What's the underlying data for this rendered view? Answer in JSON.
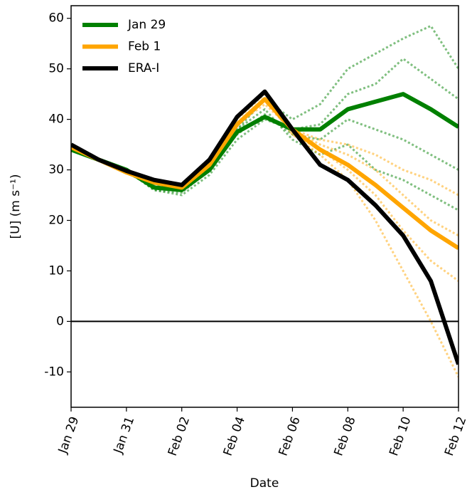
{
  "chart_data": {
    "type": "line",
    "xlabel": "Date",
    "ylabel": "[U] (m s⁻¹)",
    "categories": [
      "Jan 29",
      null,
      "Jan 31",
      null,
      "Feb 02",
      null,
      "Feb 04",
      null,
      "Feb 06",
      null,
      "Feb 08",
      null,
      "Feb 10",
      null,
      "Feb 12"
    ],
    "ylim": [
      -17,
      62.5
    ],
    "yticks": [
      -10,
      0,
      10,
      20,
      30,
      40,
      50,
      60
    ],
    "hline": 0,
    "legend": "upper left",
    "series": [
      {
        "color": "#008000",
        "style": "dotted",
        "values": [
          34,
          32,
          30,
          26,
          25.5,
          30,
          38,
          44,
          40,
          43,
          50,
          53,
          56,
          58.5,
          50
        ]
      },
      {
        "color": "#008000",
        "style": "dotted",
        "values": [
          34,
          32,
          30,
          27,
          26,
          31,
          37,
          41,
          37,
          36,
          40,
          38,
          36,
          33,
          30
        ]
      },
      {
        "color": "#008000",
        "style": "dotted",
        "values": [
          34,
          32,
          30,
          26,
          25,
          29,
          36,
          40,
          38,
          39,
          45,
          47,
          52,
          48,
          44
        ]
      },
      {
        "color": "#008000",
        "style": "dotted",
        "values": [
          34,
          32,
          29.5,
          26.5,
          26,
          30,
          38,
          42,
          36,
          33,
          35,
          30,
          28,
          25,
          22
        ]
      },
      {
        "color": "#ffa500",
        "style": "dotted",
        "values": [
          34.5,
          32,
          29.5,
          27.5,
          27,
          31,
          39,
          44,
          37,
          33,
          28,
          20,
          10,
          0,
          -11
        ]
      },
      {
        "color": "#ffa500",
        "style": "dotted",
        "values": [
          34.5,
          32,
          29.5,
          27.5,
          26.5,
          31,
          39,
          43,
          38,
          36,
          35,
          33,
          30,
          28,
          25
        ]
      },
      {
        "color": "#ffa500",
        "style": "dotted",
        "values": [
          34.5,
          32,
          29.5,
          27.5,
          26.5,
          31,
          39,
          44,
          37,
          34,
          30,
          25,
          18,
          12,
          8
        ]
      },
      {
        "color": "#ffa500",
        "style": "dotted",
        "values": [
          34.5,
          32,
          29.5,
          27.5,
          26.5,
          31,
          40,
          45,
          38,
          35,
          33,
          30,
          25,
          20,
          17
        ]
      },
      {
        "name": "Jan 29",
        "color": "#008000",
        "style": "solid",
        "values": [
          34,
          32,
          30,
          26.5,
          26,
          30,
          37.5,
          40.5,
          38,
          38,
          42,
          43.5,
          45,
          42,
          38.5
        ]
      },
      {
        "name": "Feb 1",
        "color": "#ffa500",
        "style": "solid",
        "values": [
          34.5,
          32,
          29.5,
          27.5,
          26.5,
          31,
          39,
          44,
          38,
          34,
          31,
          27,
          22.5,
          18,
          14.5
        ]
      },
      {
        "name": "ERA-I",
        "color": "#000000",
        "style": "solid",
        "values": [
          35,
          32,
          29.8,
          28,
          27,
          32,
          40.5,
          45.5,
          38,
          31,
          28,
          23,
          17,
          8,
          -8.5
        ]
      }
    ]
  }
}
